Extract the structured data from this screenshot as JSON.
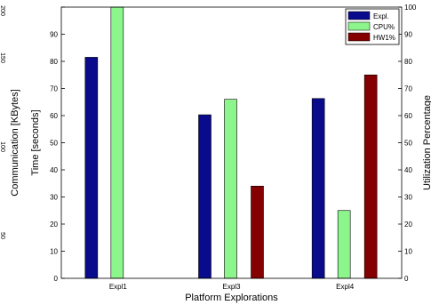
{
  "chart_data": {
    "type": "bar",
    "categories": [
      "Expl1",
      "Expl3",
      "Expl4"
    ],
    "series": [
      {
        "name": "Expl.",
        "color": "#0a0a8c",
        "values": [
          81.5,
          60.3,
          66.3
        ]
      },
      {
        "name": "CPU%",
        "color": "#8cf58c",
        "values": [
          100,
          66.0,
          25.0
        ]
      },
      {
        "name": "HW1%",
        "color": "#850000",
        "values": [
          0,
          34.0,
          75.0
        ]
      }
    ],
    "xlabel": "Platform Explorations",
    "ylabel_left_inner": "Time [seconds]",
    "ylabel_left_outer": "Communication [KBytes]",
    "ylabel_right": "Utilization Percentage",
    "ylim": [
      0,
      100
    ],
    "yticks": [
      0,
      10,
      20,
      30,
      40,
      50,
      60,
      70,
      80,
      90,
      100
    ],
    "outer_axis_ticks": [
      "200",
      "150",
      "100",
      "50"
    ],
    "legend_position": "top-right",
    "grid": false
  }
}
